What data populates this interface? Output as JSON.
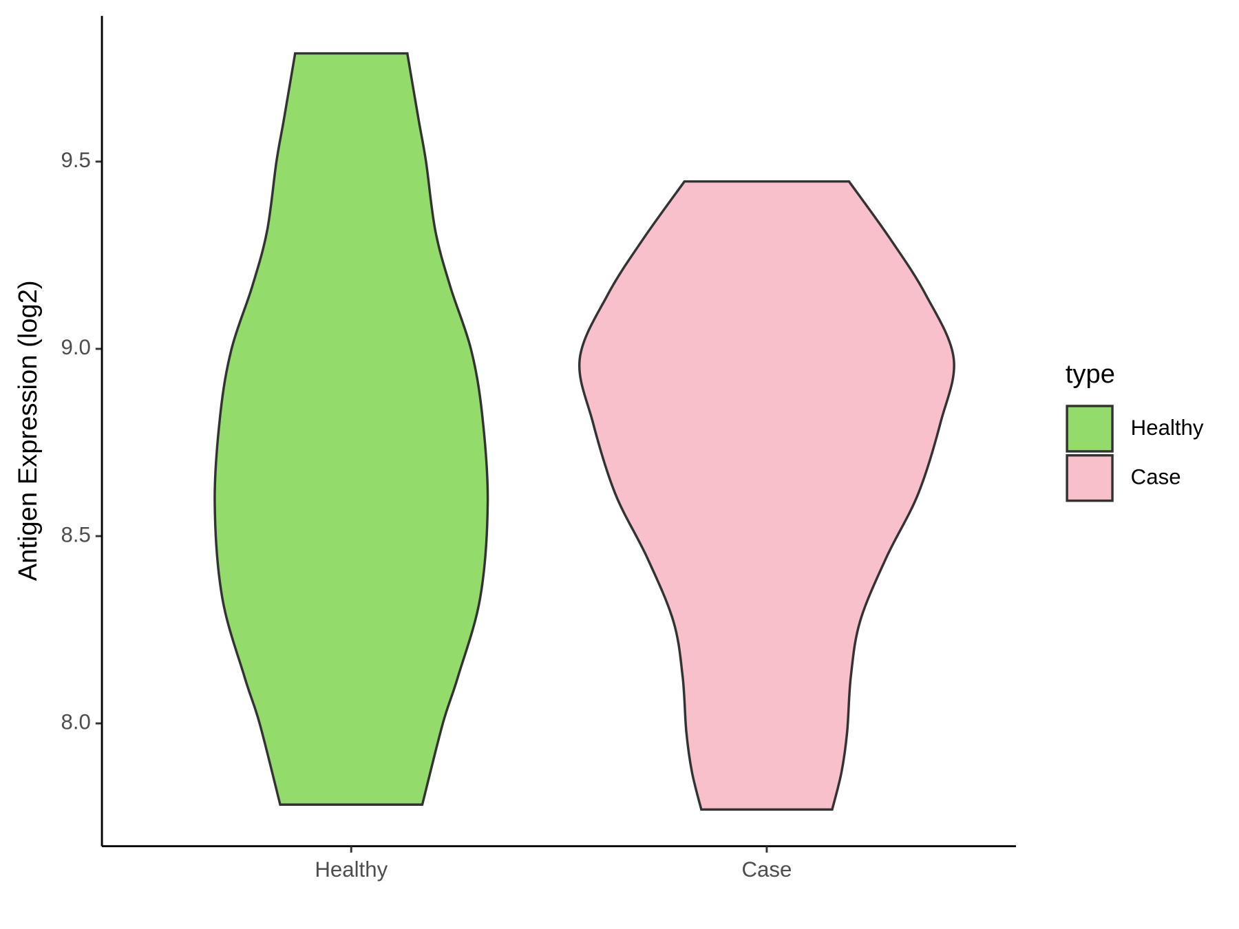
{
  "chart_data": {
    "type": "violin",
    "y_label": "Antigen Expression (log2)",
    "categories": [
      "Healthy",
      "Case"
    ],
    "series": [
      {
        "name": "Healthy",
        "color": "#93dc6b",
        "y": [
          9.789,
          9.613,
          9.5,
          9.315,
          9.166,
          9.0,
          8.826,
          8.591,
          8.336,
          8.123,
          8.0,
          7.783
        ],
        "density": [
          0.3,
          0.36,
          0.4,
          0.45,
          0.53,
          0.64,
          0.7,
          0.73,
          0.69,
          0.57,
          0.49,
          0.38
        ]
      },
      {
        "name": "Case",
        "color": "#f8c0cb",
        "y": [
          9.447,
          9.294,
          9.145,
          8.974,
          8.804,
          8.613,
          8.443,
          8.274,
          8.126,
          7.977,
          7.87,
          7.77
        ],
        "density": [
          0.44,
          0.66,
          0.85,
          1.0,
          0.93,
          0.81,
          0.64,
          0.5,
          0.45,
          0.43,
          0.4,
          0.35
        ]
      }
    ],
    "ylim": [
      7.672,
      9.889
    ],
    "yticks": [
      {
        "value": 8,
        "label": "8.0"
      },
      8.5,
      {
        "value": 9,
        "label": "9.0"
      },
      9.5
    ],
    "legend_title": "type",
    "legend": "right"
  }
}
